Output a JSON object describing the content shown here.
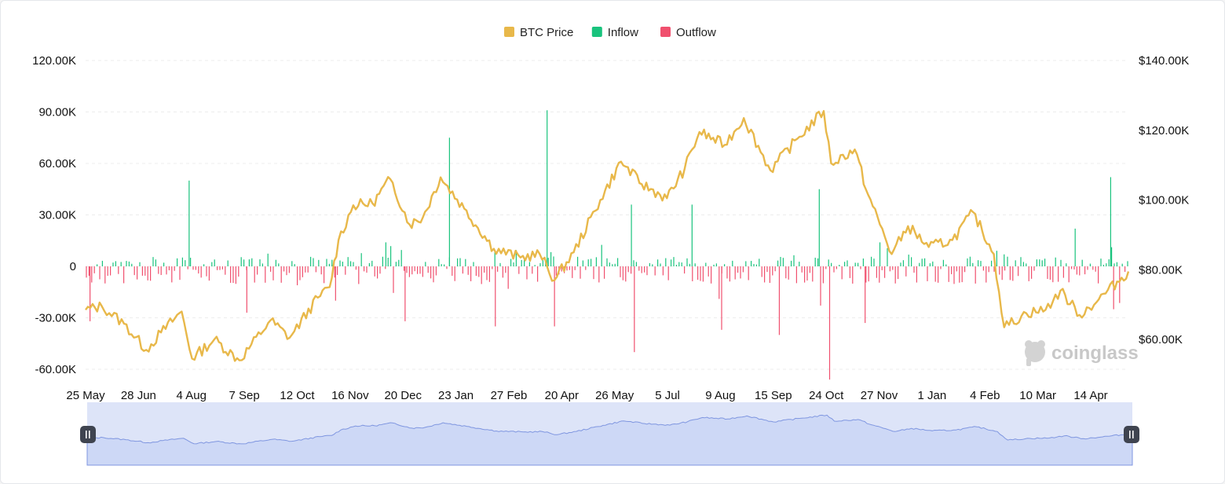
{
  "chart_data": {
    "type": "bar+line",
    "legend": [
      {
        "name": "BTC Price",
        "color": "#e8b84a"
      },
      {
        "name": "Inflow",
        "color": "#19c37d"
      },
      {
        "name": "Outflow",
        "color": "#f0506e"
      }
    ],
    "legend_position": "top-center",
    "grid": true,
    "left_axis": {
      "ylim": [
        -70000,
        120000
      ],
      "ticks": [
        -60000,
        -30000,
        0,
        30000,
        60000,
        90000,
        120000
      ],
      "tick_labels": [
        "-60.00K",
        "-30.00K",
        "0",
        "30.00K",
        "60.00K",
        "90.00K",
        "120.00K"
      ]
    },
    "right_axis": {
      "ylim": [
        48000,
        140000
      ],
      "ticks": [
        60000,
        80000,
        100000,
        120000,
        140000
      ],
      "tick_labels": [
        "$60.00K",
        "$80.00K",
        "$100.00K",
        "$120.00K",
        "$140.00K"
      ]
    },
    "x_tick_labels": [
      "25 May",
      "28 Jun",
      "4 Aug",
      "7 Sep",
      "12 Oct",
      "16 Nov",
      "20 Dec",
      "23 Jan",
      "27 Feb",
      "20 Apr",
      "26 May",
      "5 Jul",
      "9 Aug",
      "15 Sep",
      "24 Oct",
      "27 Nov",
      "1 Jan",
      "4 Feb",
      "10 Mar",
      "14 Apr"
    ],
    "x_range": [
      "2024-05-25",
      "2026-04-30"
    ],
    "price_series": {
      "name": "BTC Price",
      "unit": "USD",
      "points": [
        [
          "2024-05-25",
          68500
        ],
        [
          "2024-06-05",
          69500
        ],
        [
          "2024-06-20",
          64500
        ],
        [
          "2024-07-05",
          57000
        ],
        [
          "2024-07-15",
          62000
        ],
        [
          "2024-07-29",
          68000
        ],
        [
          "2024-08-05",
          54500
        ],
        [
          "2024-08-20",
          60000
        ],
        [
          "2024-09-06",
          54000
        ],
        [
          "2024-09-27",
          65500
        ],
        [
          "2024-10-10",
          60500
        ],
        [
          "2024-10-29",
          72000
        ],
        [
          "2024-11-06",
          75000
        ],
        [
          "2024-11-12",
          88500
        ],
        [
          "2024-11-22",
          98500
        ],
        [
          "2024-12-05",
          99000
        ],
        [
          "2024-12-17",
          106000
        ],
        [
          "2024-12-30",
          93000
        ],
        [
          "2025-01-08",
          95000
        ],
        [
          "2025-01-20",
          106500
        ],
        [
          "2025-02-05",
          97500
        ],
        [
          "2025-02-25",
          86000
        ],
        [
          "2025-03-15",
          83500
        ],
        [
          "2025-03-28",
          84500
        ],
        [
          "2025-04-07",
          77000
        ],
        [
          "2025-04-20",
          85000
        ],
        [
          "2025-05-08",
          100000
        ],
        [
          "2025-05-22",
          111000
        ],
        [
          "2025-06-05",
          104500
        ],
        [
          "2025-06-22",
          100500
        ],
        [
          "2025-07-04",
          109000
        ],
        [
          "2025-07-14",
          119500
        ],
        [
          "2025-07-31",
          115800
        ],
        [
          "2025-08-13",
          123500
        ],
        [
          "2025-08-31",
          108500
        ],
        [
          "2025-09-18",
          117500
        ],
        [
          "2025-10-06",
          125500
        ],
        [
          "2025-10-11",
          110500
        ],
        [
          "2025-10-27",
          114500
        ],
        [
          "2025-11-05",
          101500
        ],
        [
          "2025-11-21",
          84500
        ],
        [
          "2025-12-02",
          92500
        ],
        [
          "2025-12-16",
          86500
        ],
        [
          "2026-01-01",
          88500
        ],
        [
          "2026-01-15",
          96500
        ],
        [
          "2026-01-29",
          84500
        ],
        [
          "2026-02-05",
          63500
        ],
        [
          "2026-02-20",
          67500
        ],
        [
          "2026-03-05",
          68500
        ],
        [
          "2026-03-15",
          74000
        ],
        [
          "2026-03-28",
          67000
        ],
        [
          "2026-04-10",
          71500
        ],
        [
          "2026-04-30",
          79500
        ]
      ]
    },
    "netflow_series": {
      "name": "Inflow / Outflow",
      "unit": "BTC",
      "notable_points": [
        [
          "2024-05-28",
          -32000
        ],
        [
          "2024-08-03",
          50000
        ],
        [
          "2024-09-11",
          -27000
        ],
        [
          "2024-11-10",
          -20000
        ],
        [
          "2024-12-14",
          14000
        ],
        [
          "2024-12-27",
          -32000
        ],
        [
          "2025-01-26",
          75000
        ],
        [
          "2025-02-26",
          -35000
        ],
        [
          "2025-04-02",
          91000
        ],
        [
          "2025-04-07",
          -35000
        ],
        [
          "2025-05-29",
          36000
        ],
        [
          "2025-05-31",
          -50000
        ],
        [
          "2025-07-09",
          36000
        ],
        [
          "2025-07-29",
          -37000
        ],
        [
          "2025-09-06",
          -40000
        ],
        [
          "2025-10-03",
          45000
        ],
        [
          "2025-10-10",
          -66000
        ],
        [
          "2025-11-03",
          -33000
        ],
        [
          "2025-11-13",
          14000
        ],
        [
          "2026-02-05",
          7000
        ],
        [
          "2026-03-25",
          22000
        ],
        [
          "2026-04-18",
          52000
        ],
        [
          "2026-04-20",
          -25000
        ]
      ]
    },
    "watermark": "coinglass"
  },
  "ui": {
    "left_handle_icon": "pause-grip-icon",
    "right_handle_icon": "pause-grip-icon"
  }
}
